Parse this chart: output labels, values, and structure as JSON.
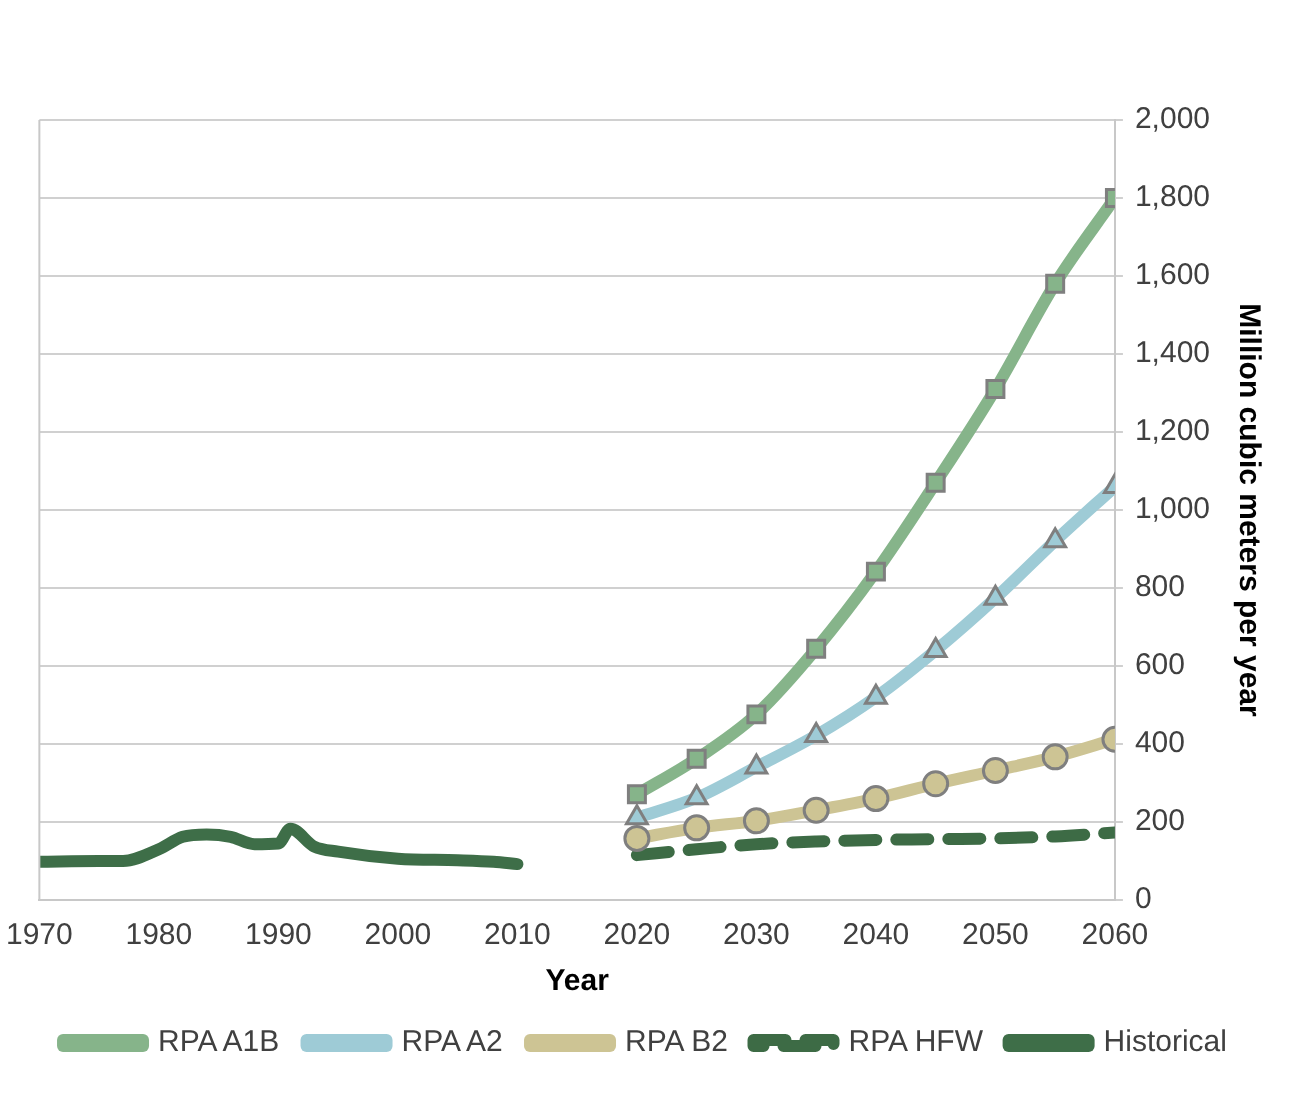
{
  "chart_data": {
    "type": "line",
    "xlabel": "Year",
    "ylabel": "Million cubic meters per year",
    "xlim": [
      1970,
      2060
    ],
    "xticks": [
      1970,
      1980,
      1990,
      2000,
      2010,
      2020,
      2030,
      2040,
      2050,
      2060
    ],
    "ylim": [
      0,
      2000
    ],
    "yticks": [
      0,
      200,
      400,
      600,
      800,
      {
        "value": 1000,
        "label": "1,000"
      },
      {
        "value": 1200,
        "label": "1,200"
      },
      {
        "value": 1400,
        "label": "1,400"
      },
      {
        "value": 1600,
        "label": "1,600"
      },
      {
        "value": 1800,
        "label": "1,800"
      },
      {
        "value": 2000,
        "label": "2,000"
      }
    ],
    "grid": "y",
    "legend": "bottom",
    "series": [
      {
        "name": "RPA A1B",
        "color": "#86b48a",
        "marker": "square",
        "line_style": "solid",
        "x": [
          2020,
          2025,
          2030,
          2035,
          2040,
          2045,
          2050,
          2055,
          2060
        ],
        "values": [
          271,
          362,
          476,
          644,
          842,
          1070,
          1310,
          1580,
          1800
        ]
      },
      {
        "name": "RPA A2",
        "color": "#9ecbd6",
        "marker": "triangle",
        "line_style": "solid",
        "x": [
          2020,
          2025,
          2030,
          2035,
          2040,
          2045,
          2050,
          2055,
          2060
        ],
        "values": [
          211,
          262,
          341,
          422,
          520,
          640,
          774,
          921,
          1060
        ]
      },
      {
        "name": "RPA B2",
        "color": "#cdc494",
        "marker": "circle",
        "line_style": "solid",
        "x": [
          2020,
          2025,
          2030,
          2035,
          2040,
          2045,
          2050,
          2055,
          2060
        ],
        "values": [
          158,
          185,
          203,
          230,
          260,
          298,
          332,
          367,
          412
        ]
      },
      {
        "name": "RPA HFW",
        "color": "#3d6b45",
        "marker": "none",
        "line_style": "dashed",
        "x": [
          2020,
          2025,
          2030,
          2035,
          2040,
          2045,
          2050,
          2055,
          2060
        ],
        "values": [
          115,
          130,
          143,
          150,
          154,
          156,
          158,
          163,
          173
        ]
      },
      {
        "name": "Historical",
        "color": "#3e6e48",
        "marker": "none",
        "line_style": "solid",
        "x": [
          1970,
          1975,
          1977,
          1980,
          1982,
          1984,
          1986,
          1988,
          1990,
          1991,
          1993,
          1995,
          2000,
          2005,
          2008,
          2010
        ],
        "values": [
          98,
          100,
          100,
          130,
          162,
          168,
          162,
          143,
          145,
          183,
          137,
          124,
          106,
          102,
          98,
          92
        ]
      }
    ]
  }
}
